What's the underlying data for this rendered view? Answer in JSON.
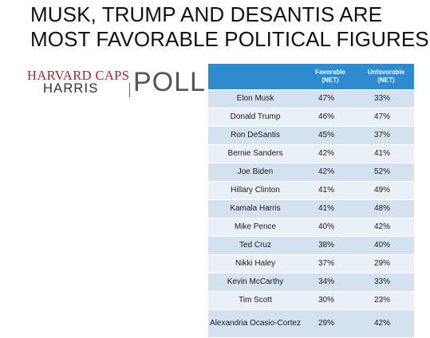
{
  "title": {
    "line1": "MUSK, TRUMP AND DESANTIS ARE",
    "line2": "MOST FAVORABLE POLITICAL FIGURES"
  },
  "logo": {
    "top": "HARVARD CAPS",
    "bottom": "HARRIS",
    "poll": "POLL"
  },
  "chart_data": {
    "type": "table",
    "columns": [
      "",
      "Favorable (NET)",
      "Unfavorable (NET)"
    ],
    "headers": {
      "favorable": "Favorable",
      "favorable_sub": "(NET)",
      "unfavorable": "Unfavorable",
      "unfavorable_sub": "(NET)"
    },
    "rows": [
      {
        "name": "Elon Musk",
        "favorable": "47%",
        "unfavorable": "33%"
      },
      {
        "name": "Donald Trump",
        "favorable": "46%",
        "unfavorable": "47%"
      },
      {
        "name": "Ron DeSantis",
        "favorable": "45%",
        "unfavorable": "37%"
      },
      {
        "name": "Bernie Sanders",
        "favorable": "42%",
        "unfavorable": "41%"
      },
      {
        "name": "Joe Biden",
        "favorable": "42%",
        "unfavorable": "52%"
      },
      {
        "name": "Hillary Clinton",
        "favorable": "41%",
        "unfavorable": "49%"
      },
      {
        "name": "Kamala Harris",
        "favorable": "41%",
        "unfavorable": "48%"
      },
      {
        "name": "Mike Pence",
        "favorable": "40%",
        "unfavorable": "42%"
      },
      {
        "name": "Ted Cruz",
        "favorable": "38%",
        "unfavorable": "40%"
      },
      {
        "name": "Nikki Haley",
        "favorable": "37%",
        "unfavorable": "29%"
      },
      {
        "name": "Kevin McCarthy",
        "favorable": "34%",
        "unfavorable": "33%"
      },
      {
        "name": "Tim Scott",
        "favorable": "30%",
        "unfavorable": "23%"
      },
      {
        "name": "Alexandria Ocasio-Cortez",
        "favorable": "29%",
        "unfavorable": "42%"
      }
    ],
    "colors": {
      "header": "#2e8bd0",
      "row_odd": "#d4e1ef",
      "row_even": "#eaf0f7"
    }
  }
}
